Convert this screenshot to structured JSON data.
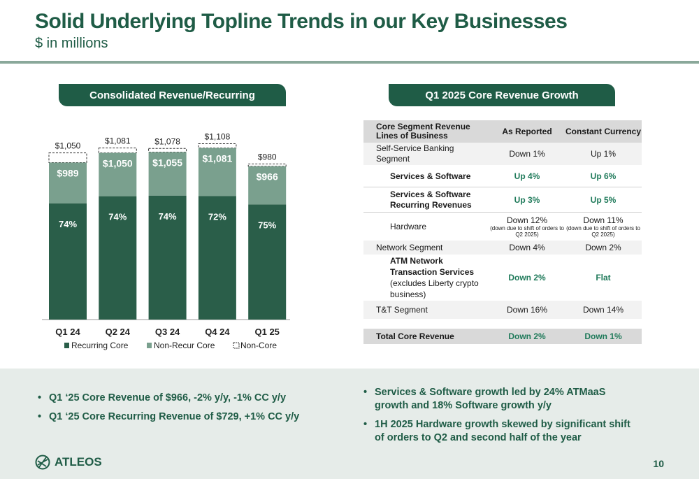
{
  "header": {
    "title": "Solid Underlying Topline Trends in our Key Businesses",
    "subtitle": "$ in millions"
  },
  "left_panel": {
    "title": "Consolidated Revenue/Recurring"
  },
  "right_panel": {
    "title": "Q1 2025 Core Revenue Growth"
  },
  "chart_data": {
    "type": "bar",
    "stacked": true,
    "categories": [
      "Q1 24",
      "Q2 24",
      "Q3 24",
      "Q4 24",
      "Q1 25"
    ],
    "series": [
      {
        "name": "Recurring Core",
        "pct_labels": [
          "74%",
          "74%",
          "74%",
          "72%",
          "75%"
        ],
        "color": "#2a5e49"
      },
      {
        "name": "Non-Recur Core",
        "color": "#7aa08e"
      },
      {
        "name": "Non-Core",
        "color": "#ffffff"
      }
    ],
    "core_totals": [
      989,
      1050,
      1055,
      1081,
      966
    ],
    "core_labels": [
      "$989",
      "$1,050",
      "$1,055",
      "$1,081",
      "$966"
    ],
    "totals": [
      1050,
      1081,
      1078,
      1108,
      980
    ],
    "total_labels": [
      "$1,050",
      "$1,081",
      "$1,078",
      "$1,108",
      "$980"
    ],
    "recurring_share": [
      0.74,
      0.74,
      0.74,
      0.72,
      0.75
    ],
    "legend_position": "bottom"
  },
  "table": {
    "headers": [
      "Core Segment Revenue Lines of Business",
      "As Reported",
      "Constant Currency"
    ],
    "rows": [
      {
        "label": "Self-Service Banking Segment",
        "reported": "Down 1%",
        "cc": "Up 1%"
      },
      {
        "label": "Services & Software",
        "reported": "Up 4%",
        "cc": "Up 6%"
      },
      {
        "label": "Services & Software Recurring Revenues",
        "reported": "Up 3%",
        "cc": "Up 5%"
      },
      {
        "label": "Hardware",
        "reported": "Down 12%",
        "reported_note": "(down due to shift of orders to Q2 2025)",
        "cc": "Down 11%",
        "cc_note": "(down due to shift of orders to Q2 2025)"
      },
      {
        "label": "Network Segment",
        "reported": "Down 4%",
        "cc": "Down 2%"
      },
      {
        "label": "ATM Network Transaction Services",
        "label_note": "(excludes Liberty crypto business)",
        "reported": "Down 2%",
        "cc": "Flat"
      },
      {
        "label": "T&T Segment",
        "reported": "Down 16%",
        "cc": "Down 14%"
      }
    ],
    "total": {
      "label": "Total Core Revenue",
      "reported": "Down 2%",
      "cc": "Down 1%"
    }
  },
  "bullets_left": [
    "Q1 ‘25 Core Revenue of $966, -2% y/y, -1% CC y/y",
    "Q1 ‘25 Core Recurring Revenue of $729, +1% CC y/y"
  ],
  "bullets_right": [
    "Services & Software growth led by 24% ATMaaS growth and 18% Software growth y/y",
    "1H 2025 Hardware growth skewed by significant shift of orders to Q2 and second half of the year"
  ],
  "footer": {
    "logo_text": "ATLEOS",
    "page_number": "10"
  }
}
